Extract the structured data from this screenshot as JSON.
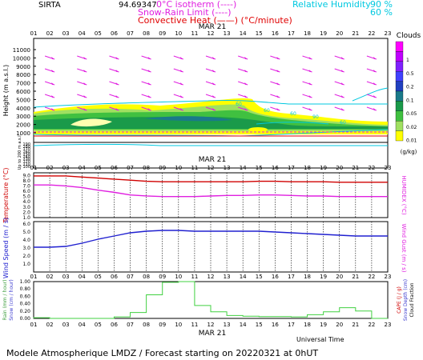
{
  "header": {
    "station": "SIRTA",
    "coords": "94.69347",
    "legend_left": [
      {
        "label": "0°C isotherm",
        "sample": "(----)",
        "color": "#e020e0"
      },
      {
        "label": "Snow-Rain Limit",
        "sample": "(----)",
        "color": "#e020e0"
      },
      {
        "label": "Convective Heat",
        "sample": "(——)",
        "unit": "(°C/minute)",
        "color": "#e00000"
      }
    ],
    "legend_right": [
      {
        "label": "Relative Humidity",
        "values": [
          "90 %",
          "60 %"
        ],
        "color": "#00d0e0"
      }
    ]
  },
  "date_label": "MAR 21",
  "hours": [
    "01",
    "02",
    "03",
    "04",
    "05",
    "06",
    "07",
    "08",
    "09",
    "10",
    "11",
    "12",
    "13",
    "14",
    "15",
    "16",
    "17",
    "18",
    "19",
    "20",
    "21",
    "22",
    "23"
  ],
  "clouds_legend": {
    "title": "Clouds",
    "unit": "(g/kg)",
    "levels": [
      "1",
      "0.5",
      "0.2",
      "0.1",
      "0.05",
      "0.02",
      "0.01"
    ],
    "colors": [
      "#ff00ff",
      "#c000ff",
      "#8020ff",
      "#4040ff",
      "#2040c0",
      "#1a7a8a",
      "#1a9a4a",
      "#40c040",
      "#a0e060",
      "#ffff00"
    ]
  },
  "panel1": {
    "ylabel": "Height (m a.s.l.)",
    "ylabel2": "Up to 200 m a.s.l.",
    "yticks": [
      "11000",
      "10000",
      "9000",
      "8000",
      "7000",
      "6000",
      "5000",
      "4000",
      "3000",
      "2000",
      "1000"
    ],
    "yticks_low": [
      "190",
      "180",
      "170",
      "160",
      "150",
      "140",
      "130",
      "120",
      "110",
      "100"
    ],
    "rh_labels": [
      "60",
      "60",
      "60",
      "90",
      "60"
    ]
  },
  "panel2": {
    "ylabel_left": "Temperature (°C)",
    "ylabel_right": "HUMIDEX (°C)",
    "yticks": [
      "9.0",
      "8.0",
      "7.0",
      "6.0",
      "5.0",
      "4.0",
      "3.0",
      "2.0",
      "1.0"
    ]
  },
  "panel3": {
    "ylabel_left": "Wind Speed (m / s)",
    "ylabel_right": "Wind Gust (m / s)",
    "yticks": [
      "6.0",
      "5.0",
      "4.0",
      "3.0",
      "2.0",
      "1.0"
    ]
  },
  "panel4": {
    "ylabel_left": "Rain (mm / hour)",
    "ylabel_left2": "Snow (cm / hour)",
    "ylabel_right1": "CAPE (J / g)",
    "ylabel_right2": "Snow Depth (cm)",
    "ylabel_right3": "Cloud Fraction",
    "yticks": [
      "1.00",
      "0.80",
      "0.60",
      "0.40",
      "0.20",
      "0.00"
    ]
  },
  "xlabel": "Universal Time",
  "footer": "Modele Atmospherique LMDZ / Forecast starting on 20220321 at 0hUT",
  "chart_data": [
    {
      "type": "line",
      "title": "Temperature",
      "x": [
        "01",
        "02",
        "03",
        "04",
        "05",
        "06",
        "07",
        "08",
        "09",
        "10",
        "11",
        "12",
        "13",
        "14",
        "15",
        "16",
        "17",
        "18",
        "19",
        "20",
        "21",
        "22",
        "23"
      ],
      "series": [
        {
          "name": "Temperature",
          "color": "#d00000",
          "values": [
            8.9,
            8.9,
            8.9,
            8.7,
            8.5,
            8.3,
            8.1,
            7.9,
            7.8,
            7.8,
            7.8,
            7.8,
            7.8,
            7.8,
            7.9,
            7.9,
            7.8,
            7.8,
            7.8,
            7.7,
            7.7,
            7.7,
            7.7
          ]
        },
        {
          "name": "HUMIDEX",
          "color": "#e020e0",
          "values": [
            7.2,
            7.2,
            7.0,
            6.7,
            6.2,
            5.8,
            5.3,
            5.1,
            5.0,
            5.0,
            5.0,
            5.1,
            5.2,
            5.2,
            5.3,
            5.3,
            5.2,
            5.1,
            5.1,
            5.0,
            5.0,
            5.0,
            5.0
          ]
        }
      ],
      "ylim": [
        1,
        9.5
      ]
    },
    {
      "type": "line",
      "title": "Wind Speed",
      "x": [
        "01",
        "02",
        "03",
        "04",
        "05",
        "06",
        "07",
        "08",
        "09",
        "10",
        "11",
        "12",
        "13",
        "14",
        "15",
        "16",
        "17",
        "18",
        "19",
        "20",
        "21",
        "22",
        "23"
      ],
      "series": [
        {
          "name": "Wind Speed",
          "color": "#2020d0",
          "values": [
            3.1,
            3.1,
            3.2,
            3.6,
            4.1,
            4.5,
            4.9,
            5.1,
            5.2,
            5.2,
            5.1,
            5.1,
            5.1,
            5.1,
            5.1,
            5.0,
            4.9,
            4.8,
            4.7,
            4.6,
            4.5,
            4.5,
            4.5
          ]
        }
      ],
      "ylim": [
        0,
        6.3
      ]
    },
    {
      "type": "bar",
      "title": "Rain",
      "x": [
        "01",
        "02",
        "03",
        "04",
        "05",
        "06",
        "07",
        "08",
        "09",
        "10",
        "11",
        "12",
        "13",
        "14",
        "15",
        "16",
        "17",
        "18",
        "19",
        "20",
        "21",
        "22",
        "23"
      ],
      "series": [
        {
          "name": "Rain",
          "color": "#40d040",
          "values": [
            0.02,
            0,
            0,
            0,
            0,
            0.04,
            0.16,
            0.64,
            0.98,
            1.0,
            0.35,
            0.18,
            0.08,
            0.06,
            0.05,
            0.05,
            0.04,
            0.1,
            0.18,
            0.29,
            0.2,
            0.0,
            0.0
          ]
        }
      ],
      "ylim": [
        0,
        1.0
      ]
    }
  ]
}
